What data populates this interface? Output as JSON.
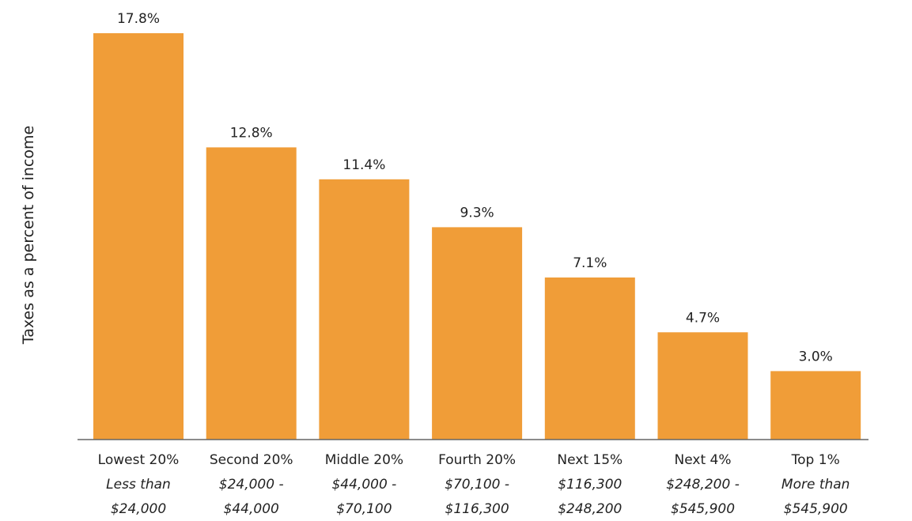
{
  "chart_data": {
    "type": "bar",
    "title": "",
    "xlabel": "",
    "ylabel": "Taxes as a percent of income",
    "ylim": [
      0,
      17.8
    ],
    "grid": false,
    "bar_color": "#f09d38",
    "categories": [
      {
        "line1": "Lowest 20%",
        "line2": "Less than",
        "line3": "$24,000"
      },
      {
        "line1": "Second 20%",
        "line2": "$24,000 -",
        "line3": "$44,000"
      },
      {
        "line1": "Middle 20%",
        "line2": "$44,000 -",
        "line3": "$70,100"
      },
      {
        "line1": "Fourth 20%",
        "line2": "$70,100 -",
        "line3": "$116,300"
      },
      {
        "line1": "Next 15%",
        "line2": "$116,300",
        "line3": "$248,200"
      },
      {
        "line1": "Next 4%",
        "line2": "$248,200 -",
        "line3": "$545,900"
      },
      {
        "line1": "Top 1%",
        "line2": "More than",
        "line3": "$545,900"
      }
    ],
    "values": [
      17.8,
      12.8,
      11.4,
      9.3,
      7.1,
      4.7,
      3.0
    ],
    "value_labels": [
      "17.8%",
      "12.8%",
      "11.4%",
      "9.3%",
      "7.1%",
      "4.7%",
      "3.0%"
    ]
  }
}
